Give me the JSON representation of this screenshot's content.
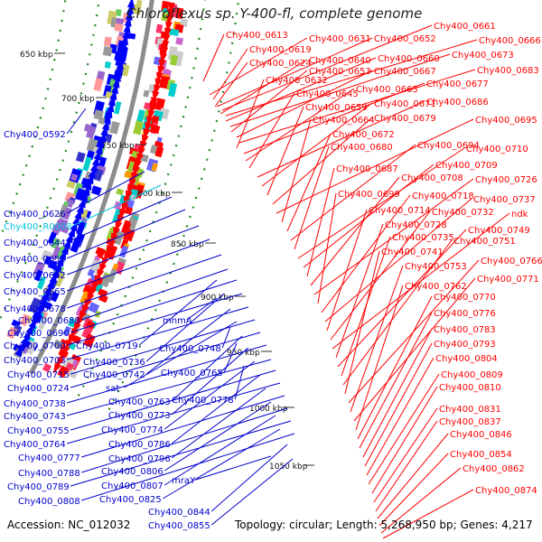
{
  "title": "Chloroflexus sp. Y-400-fl, complete genome",
  "accession_text": "Accession: NC_012032",
  "topology_text": "Topology: circular; Length: 5,268,950 bp; Genes: 4,217",
  "colors": {
    "backbone": "#8c8c8c",
    "forward_strand": "#ff0000",
    "reverse_strand": "#0000ff",
    "rna": "#00ccff",
    "ruler_dot": "#228822"
  },
  "ruler_ticks": [
    {
      "label": "650 kbp"
    },
    {
      "label": "700 kbp"
    },
    {
      "label": "750 kbp"
    },
    {
      "label": "800 kbp"
    },
    {
      "label": "850 kbp"
    },
    {
      "label": "900 kbp"
    },
    {
      "label": "950 kbp"
    },
    {
      "label": "1000 kbp"
    },
    {
      "label": "1050 kbp"
    }
  ],
  "left_labels": [
    {
      "text": "Chy400_0592",
      "color": "#0000cc"
    },
    {
      "text": "Chy400_0626",
      "color": "#0000cc"
    },
    {
      "text": "Chy400_R0008",
      "color": "#00c0e0"
    },
    {
      "text": "Chy400_0644",
      "color": "#0000cc"
    },
    {
      "text": "Chy400_0651",
      "color": "#0000cc"
    },
    {
      "text": "Chy400_0662",
      "color": "#0000cc"
    },
    {
      "text": "Chy400_0665",
      "color": "#0000cc"
    },
    {
      "text": "Chy400_0678",
      "color": "#0000cc"
    },
    {
      "text": "Chy400_0688",
      "color": "#0000cc"
    },
    {
      "text": "Chy400_0690",
      "color": "#0000cc"
    },
    {
      "text": "Chy400_0700",
      "color": "#0000cc"
    },
    {
      "text": "Chy400_0703",
      "color": "#0000cc"
    },
    {
      "text": "Chy400_0715",
      "color": "#0000cc"
    },
    {
      "text": "Chy400_0724",
      "color": "#0000cc"
    },
    {
      "text": "Chy400_0738",
      "color": "#0000cc"
    },
    {
      "text": "Chy400_0743",
      "color": "#0000cc"
    },
    {
      "text": "Chy400_0755",
      "color": "#0000cc"
    },
    {
      "text": "Chy400_0764",
      "color": "#0000cc"
    },
    {
      "text": "Chy400_0777",
      "color": "#0000cc"
    },
    {
      "text": "Chy400_0788",
      "color": "#0000cc"
    },
    {
      "text": "Chy400_0789",
      "color": "#0000cc"
    },
    {
      "text": "Chy400_0808",
      "color": "#0000cc"
    },
    {
      "text": "Chy400_0719",
      "color": "#0000cc"
    },
    {
      "text": "Chy400_0736",
      "color": "#0000cc"
    },
    {
      "text": "Chy400_0742",
      "color": "#0000cc"
    },
    {
      "text": "sat",
      "color": "#0000cc"
    },
    {
      "text": "Chy400_0763",
      "color": "#0000cc"
    },
    {
      "text": "Chy400_0773",
      "color": "#0000cc"
    },
    {
      "text": "Chy400_0774",
      "color": "#0000cc"
    },
    {
      "text": "Chy400_0786",
      "color": "#0000cc"
    },
    {
      "text": "Chy400_0796",
      "color": "#0000cc"
    },
    {
      "text": "Chy400_0806",
      "color": "#0000cc"
    },
    {
      "text": "Chy400_0807",
      "color": "#0000cc"
    },
    {
      "text": "Chy400_0825",
      "color": "#0000cc"
    },
    {
      "text": "Chy400_0844",
      "color": "#0000cc"
    },
    {
      "text": "Chy400_0855",
      "color": "#0000cc"
    },
    {
      "text": "mnmA",
      "color": "#0000cc"
    },
    {
      "text": "Chy400_0748",
      "color": "#0000cc"
    },
    {
      "text": "Chy400_0765",
      "color": "#0000cc"
    },
    {
      "text": "Chy400_0778",
      "color": "#0000cc"
    },
    {
      "text": "mraY",
      "color": "#0000cc"
    }
  ],
  "right_labels": [
    {
      "text": "Chy400_0613"
    },
    {
      "text": "Chy400_0631"
    },
    {
      "text": "Chy400_0652"
    },
    {
      "text": "Chy400_0661"
    },
    {
      "text": "Chy400_0666"
    },
    {
      "text": "Chy400_0619"
    },
    {
      "text": "Chy400_0624"
    },
    {
      "text": "Chy400_0640"
    },
    {
      "text": "Chy400_0660"
    },
    {
      "text": "Chy400_0673"
    },
    {
      "text": "Chy400_0653"
    },
    {
      "text": "Chy400_0667"
    },
    {
      "text": "Chy400_0683"
    },
    {
      "text": "Chy400_0632"
    },
    {
      "text": "Chy400_0677"
    },
    {
      "text": "Chy400_0663"
    },
    {
      "text": "Chy400_0645"
    },
    {
      "text": "Chy400_0686"
    },
    {
      "text": "Chy400_0671"
    },
    {
      "text": "Chy400_0659"
    },
    {
      "text": "Chy400_0679"
    },
    {
      "text": "Chy400_0695"
    },
    {
      "text": "Chy400_0664"
    },
    {
      "text": "Chy400_0672"
    },
    {
      "text": "Chy400_0694"
    },
    {
      "text": "Chy400_0680"
    },
    {
      "text": "Chy400_0710"
    },
    {
      "text": "Chy400_0709"
    },
    {
      "text": "Chy400_0687"
    },
    {
      "text": "Chy400_0708"
    },
    {
      "text": "Chy400_0726"
    },
    {
      "text": "Chy400_0699"
    },
    {
      "text": "Chy400_0718"
    },
    {
      "text": "Chy400_0737"
    },
    {
      "text": "Chy400_0714"
    },
    {
      "text": "Chy400_0732"
    },
    {
      "text": "ndk"
    },
    {
      "text": "Chy400_0728"
    },
    {
      "text": "Chy400_0749"
    },
    {
      "text": "Chy400_0735"
    },
    {
      "text": "Chy400_0751"
    },
    {
      "text": "Chy400_0741"
    },
    {
      "text": "Chy400_0766"
    },
    {
      "text": "Chy400_0753"
    },
    {
      "text": "Chy400_0771"
    },
    {
      "text": "Chy400_0762"
    },
    {
      "text": "Chy400_0770"
    },
    {
      "text": "Chy400_0776"
    },
    {
      "text": "Chy400_0783"
    },
    {
      "text": "Chy400_0793"
    },
    {
      "text": "Chy400_0804"
    },
    {
      "text": "Chy400_0809"
    },
    {
      "text": "Chy400_0810"
    },
    {
      "text": "Chy400_0831"
    },
    {
      "text": "Chy400_0837"
    },
    {
      "text": "Chy400_0846"
    },
    {
      "text": "Chy400_0854"
    },
    {
      "text": "Chy400_0862"
    },
    {
      "text": "Chy400_0874"
    }
  ]
}
